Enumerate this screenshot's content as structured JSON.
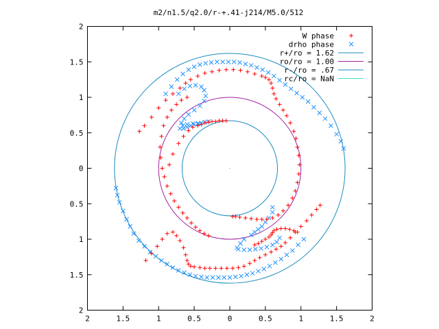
{
  "chart_data": {
    "type": "scatter",
    "title": "m2/n1.5/q2.0/r-+.41-j214/M5.0/512",
    "xlabel": "",
    "ylabel": "",
    "xlim": [
      -2,
      2
    ],
    "ylim": [
      -2,
      2
    ],
    "xticks": [
      "2",
      "1.5",
      "1",
      "0.5",
      "0",
      "0.5",
      "1",
      "1.5",
      "2"
    ],
    "yticks": [
      "2",
      "1.5",
      "1",
      "0.5",
      "0",
      "0.5",
      "1",
      "1.5",
      "2"
    ],
    "legend_position": "top-right",
    "grid": false,
    "series": [
      {
        "name": "W phase",
        "marker": "plus",
        "color": "#ff0000",
        "x": [
          -1.27,
          -1.2,
          -1.1,
          -1.0,
          -0.9,
          -0.8,
          -0.7,
          -0.62,
          -0.55,
          -0.45,
          -0.35,
          -0.25,
          -0.15,
          -0.05,
          0.05,
          0.15,
          0.25,
          0.35,
          0.45,
          0.5,
          0.55,
          0.58,
          0.6,
          0.62,
          0.65,
          0.7,
          0.75,
          0.8,
          0.85,
          0.9,
          0.93,
          0.95,
          0.97,
          0.98,
          0.97,
          0.95,
          0.92,
          0.88,
          0.82,
          0.75,
          0.68,
          0.6,
          0.52,
          0.45,
          0.38,
          0.3,
          0.22,
          0.14,
          0.08,
          0.04,
          -0.85,
          -0.8,
          -0.72,
          -0.65,
          -0.58,
          -0.52,
          -0.45,
          -0.4,
          -0.35,
          -0.3,
          -0.25,
          -0.2,
          -0.15,
          -0.1,
          -0.05,
          -0.6,
          -0.68,
          -0.75,
          -0.82,
          -0.88,
          -0.93,
          -0.96,
          -0.98,
          -0.97,
          -0.95,
          -0.92,
          -0.88,
          -0.83,
          -0.78,
          -0.72,
          -0.66,
          -0.6,
          -0.54,
          -0.48,
          -0.42,
          -0.36,
          -0.3,
          1.27,
          1.22,
          1.15,
          1.08,
          1.0,
          0.92,
          0.85,
          0.78,
          0.72,
          0.65,
          0.58,
          0.5,
          0.42,
          0.35,
          0.28,
          0.2,
          0.12,
          0.04,
          -0.04,
          -0.12,
          -0.2,
          -0.28,
          -0.35,
          -0.42,
          -0.5,
          -0.55,
          -0.58,
          -0.6,
          -0.62,
          -0.65,
          -0.7,
          -0.75,
          -0.8,
          -0.88,
          -0.95,
          -1.02,
          -1.1,
          -1.18,
          0.35,
          0.4,
          0.45,
          0.5,
          0.55,
          0.58,
          0.6,
          0.62,
          0.66,
          0.72,
          0.78,
          0.84,
          0.9,
          0.95
        ],
        "y": [
          0.52,
          0.6,
          0.72,
          0.85,
          0.96,
          1.05,
          1.13,
          1.2,
          1.25,
          1.3,
          1.34,
          1.36,
          1.38,
          1.39,
          1.39,
          1.38,
          1.36,
          1.33,
          1.3,
          1.28,
          1.25,
          1.2,
          1.13,
          1.05,
          0.98,
          0.9,
          0.82,
          0.74,
          0.64,
          0.52,
          0.42,
          0.3,
          0.18,
          0.05,
          -0.08,
          -0.2,
          -0.32,
          -0.42,
          -0.52,
          -0.6,
          -0.66,
          -0.7,
          -0.72,
          -0.72,
          -0.72,
          -0.71,
          -0.7,
          -0.69,
          -0.68,
          -0.68,
          0.05,
          0.2,
          0.35,
          0.45,
          0.53,
          0.58,
          0.6,
          0.62,
          0.64,
          0.65,
          0.66,
          0.66,
          0.67,
          0.67,
          0.67,
          1.0,
          0.96,
          0.9,
          0.82,
          0.72,
          0.6,
          0.45,
          0.3,
          0.15,
          0.0,
          -0.12,
          -0.25,
          -0.36,
          -0.46,
          -0.55,
          -0.63,
          -0.7,
          -0.77,
          -0.83,
          -0.88,
          -0.92,
          -0.95,
          -0.52,
          -0.58,
          -0.66,
          -0.74,
          -0.82,
          -0.9,
          -0.98,
          -1.05,
          -1.1,
          -1.14,
          -1.18,
          -1.22,
          -1.26,
          -1.3,
          -1.34,
          -1.38,
          -1.4,
          -1.41,
          -1.41,
          -1.41,
          -1.41,
          -1.41,
          -1.41,
          -1.4,
          -1.39,
          -1.38,
          -1.35,
          -1.3,
          -1.22,
          -1.12,
          -1.02,
          -0.95,
          -0.9,
          -0.92,
          -1.0,
          -1.1,
          -1.2,
          -1.3,
          -1.08,
          -1.06,
          -1.03,
          -1.0,
          -0.97,
          -0.94,
          -0.91,
          -0.88,
          -0.86,
          -0.85,
          -0.85,
          -0.86,
          -0.88,
          -0.9
        ]
      },
      {
        "name": "drho phase",
        "marker": "cross",
        "color": "#1e90ff",
        "x": [
          -0.9,
          -0.82,
          -0.74,
          -0.66,
          -0.58,
          -0.5,
          -0.42,
          -0.34,
          -0.26,
          -0.18,
          -0.1,
          -0.02,
          0.06,
          0.14,
          0.22,
          0.3,
          0.38,
          0.46,
          0.54,
          0.62,
          0.7,
          0.78,
          0.86,
          0.94,
          1.02,
          1.1,
          1.18,
          1.26,
          1.34,
          1.42,
          1.5,
          1.56,
          1.6,
          -0.72,
          -0.64,
          -0.56,
          -0.48,
          -0.4,
          -0.36,
          -0.34,
          -0.36,
          -0.42,
          -0.5,
          -0.58,
          -0.64,
          -0.68,
          -0.7,
          -0.66,
          -0.6,
          -0.52,
          -0.44,
          -0.65,
          -0.6,
          -0.55,
          -0.5,
          -0.45,
          -0.4,
          -0.35,
          -0.3,
          -1.6,
          -1.58,
          -1.55,
          -1.5,
          -1.45,
          -1.4,
          -1.35,
          -1.28,
          -1.2,
          -1.12,
          -1.04,
          -0.96,
          -0.88,
          -0.8,
          -0.72,
          -0.64,
          -0.56,
          -0.48,
          -0.4,
          -0.32,
          -0.24,
          -0.16,
          -0.08,
          0.0,
          0.08,
          0.16,
          0.24,
          0.32,
          0.4,
          0.48,
          0.56,
          0.64,
          0.72,
          0.8,
          0.88,
          0.96,
          1.04,
          0.6,
          0.6,
          0.55,
          0.5,
          0.45,
          0.4,
          0.35,
          0.3,
          0.2,
          0.15,
          0.1,
          0.12,
          0.2,
          0.28,
          0.36,
          0.44,
          0.52,
          0.6,
          0.66,
          0.7
        ],
        "y": [
          1.05,
          1.15,
          1.25,
          1.33,
          1.39,
          1.43,
          1.46,
          1.48,
          1.49,
          1.5,
          1.5,
          1.5,
          1.5,
          1.49,
          1.47,
          1.45,
          1.42,
          1.39,
          1.35,
          1.3,
          1.24,
          1.18,
          1.12,
          1.06,
          1.0,
          0.94,
          0.86,
          0.78,
          0.7,
          0.6,
          0.48,
          0.38,
          0.28,
          1.05,
          1.12,
          1.16,
          1.17,
          1.15,
          1.1,
          1.02,
          0.95,
          0.88,
          0.82,
          0.76,
          0.7,
          0.64,
          0.56,
          0.6,
          0.62,
          0.63,
          0.63,
          0.56,
          0.58,
          0.6,
          0.62,
          0.63,
          0.64,
          0.65,
          0.66,
          -0.28,
          -0.38,
          -0.48,
          -0.6,
          -0.72,
          -0.82,
          -0.92,
          -1.02,
          -1.1,
          -1.18,
          -1.24,
          -1.3,
          -1.35,
          -1.4,
          -1.44,
          -1.47,
          -1.5,
          -1.52,
          -1.53,
          -1.54,
          -1.54,
          -1.54,
          -1.54,
          -1.54,
          -1.53,
          -1.52,
          -1.5,
          -1.48,
          -1.45,
          -1.42,
          -1.38,
          -1.33,
          -1.28,
          -1.22,
          -1.16,
          -1.08,
          -1.0,
          -0.55,
          -0.62,
          -0.7,
          -0.76,
          -0.82,
          -0.86,
          -0.9,
          -0.94,
          -1.0,
          -1.06,
          -1.12,
          -1.14,
          -1.15,
          -1.15,
          -1.14,
          -1.13,
          -1.11,
          -1.08,
          -1.04,
          -0.98
        ]
      },
      {
        "name": "r+/ro = 1.62",
        "type": "circle",
        "radius": 1.62,
        "color": "#1a8bbf"
      },
      {
        "name": "ro/ro = 1.00",
        "type": "circle",
        "radius": 1.0,
        "color": "#a020a0"
      },
      {
        "name": "r-/ro = .67",
        "type": "circle",
        "radius": 0.67,
        "color": "#1a8bbf"
      },
      {
        "name": "rc/ro = NaN",
        "type": "circle",
        "radius": null,
        "color": "#40e0d0"
      }
    ]
  }
}
